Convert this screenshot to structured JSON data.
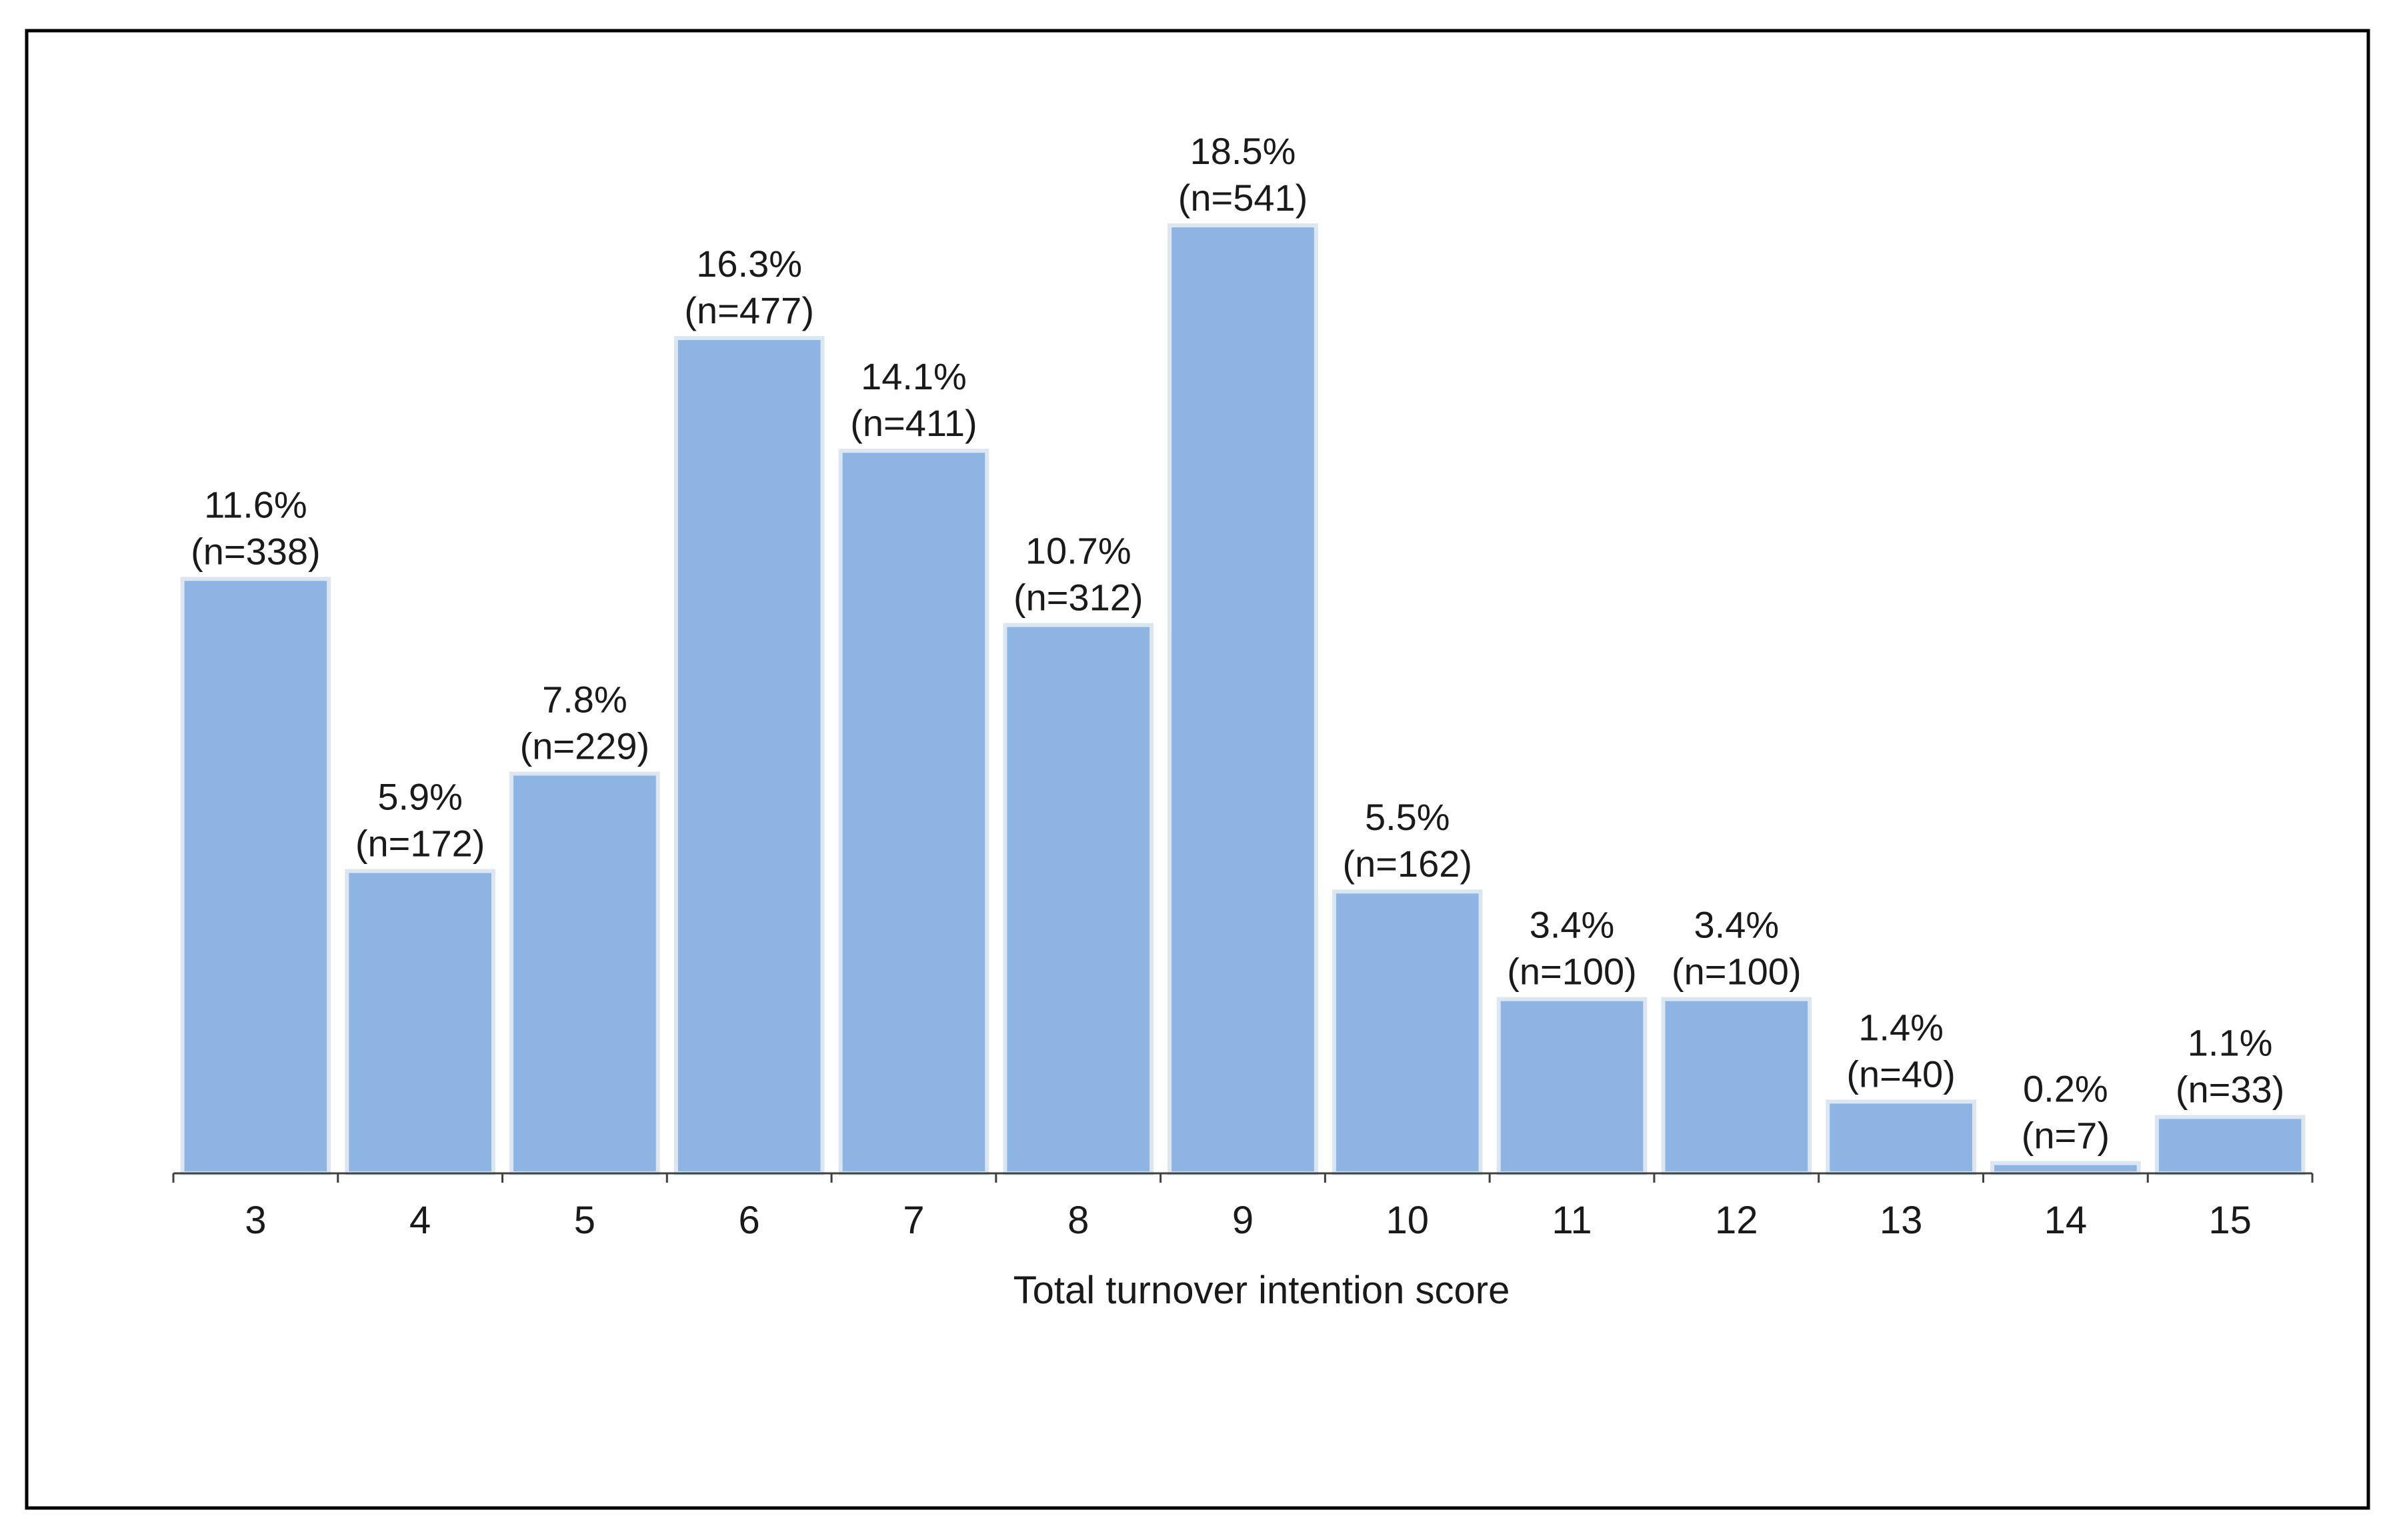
{
  "chart_data": {
    "type": "bar",
    "categories": [
      "3",
      "4",
      "5",
      "6",
      "7",
      "8",
      "9",
      "10",
      "11",
      "12",
      "13",
      "14",
      "15"
    ],
    "values": [
      11.6,
      5.9,
      7.8,
      16.3,
      14.1,
      10.7,
      18.5,
      5.5,
      3.4,
      3.4,
      1.4,
      0.2,
      1.1
    ],
    "counts": [
      338,
      172,
      229,
      477,
      411,
      312,
      541,
      162,
      100,
      100,
      40,
      7,
      33
    ],
    "percent_labels": [
      "11.6%",
      "5.9%",
      "7.8%",
      "16.3%",
      "14.1%",
      "10.7%",
      "18.5%",
      "5.5%",
      "3.4%",
      "3.4%",
      "1.4%",
      "0.2%",
      "1.1%"
    ],
    "count_labels": [
      "(n=338)",
      "(n=172)",
      "(n=229)",
      "(n=477)",
      "(n=411)",
      "(n=312)",
      "(n=541)",
      "(n=162)",
      "(n=100)",
      "(n=100)",
      "(n=40)",
      "(n=7)",
      "(n=33)"
    ],
    "title": "",
    "xlabel": "Total turnover intention score",
    "ylabel": "",
    "ylim": [
      0,
      18.5
    ],
    "grid": false,
    "legend": "none",
    "colors": {
      "bar_fill": "#8db4e2",
      "bar_edge": "#dce6f1",
      "axis": "#404040",
      "frame": "#000000"
    }
  }
}
